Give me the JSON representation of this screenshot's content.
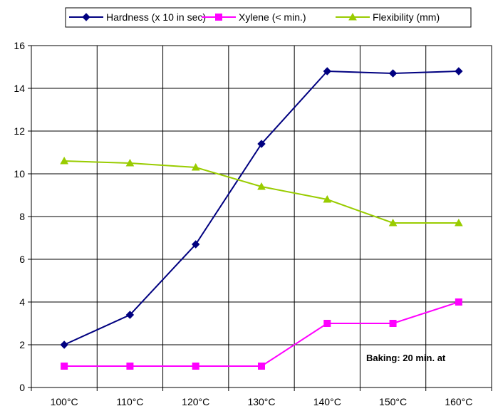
{
  "chart_data": {
    "type": "line",
    "categories": [
      "100°C",
      "110°C",
      "120°C",
      "130°C",
      "140°C",
      "150°C",
      "160°C"
    ],
    "series": [
      {
        "name": "Hardness (x 10 in sec)",
        "values": [
          2.0,
          3.4,
          6.7,
          11.4,
          14.8,
          14.7,
          14.8
        ],
        "color": "#000080",
        "marker": "diamond"
      },
      {
        "name": "Xylene (< min.)",
        "values": [
          1,
          1,
          1,
          1,
          3,
          3,
          4
        ],
        "color": "#ff00ff",
        "marker": "square"
      },
      {
        "name": "Flexibility  (mm)",
        "values": [
          10.6,
          10.5,
          10.3,
          9.4,
          8.8,
          7.7,
          7.7
        ],
        "color": "#99cc00",
        "marker": "triangle"
      }
    ],
    "ylim": [
      0,
      16
    ],
    "yticks": [
      0,
      2,
      4,
      6,
      8,
      10,
      12,
      14,
      16
    ],
    "grid": true,
    "legend_position": "top",
    "annotation": "Baking: 20 min. at",
    "xlabel": "",
    "ylabel": ""
  }
}
